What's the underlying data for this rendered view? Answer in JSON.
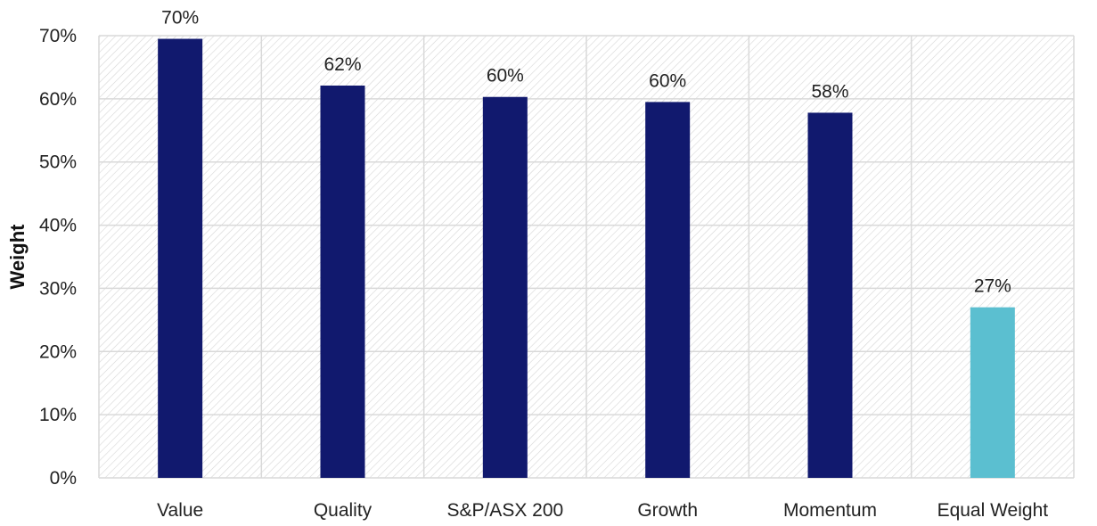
{
  "chart_data": {
    "type": "bar",
    "title": "",
    "xlabel": "",
    "ylabel": "Weight",
    "categories": [
      "Value",
      "Quality",
      "S&P/ASX 200",
      "Growth",
      "Momentum",
      "Equal Weight"
    ],
    "values": [
      69.5,
      62.1,
      60.3,
      59.5,
      57.8,
      27.0
    ],
    "data_labels": [
      "70%",
      "62%",
      "60%",
      "60%",
      "58%",
      "27%"
    ],
    "bar_colors": [
      "#11196e",
      "#11196e",
      "#11196e",
      "#11196e",
      "#11196e",
      "#5bbfd0"
    ],
    "ylim": [
      0,
      70
    ],
    "yticks": [
      0,
      10,
      20,
      30,
      40,
      50,
      60,
      70
    ],
    "ytick_labels": [
      "0%",
      "10%",
      "20%",
      "30%",
      "40%",
      "50%",
      "60%",
      "70%"
    ],
    "grid": true,
    "plot_background": "hatched light gray",
    "legend": "none"
  }
}
